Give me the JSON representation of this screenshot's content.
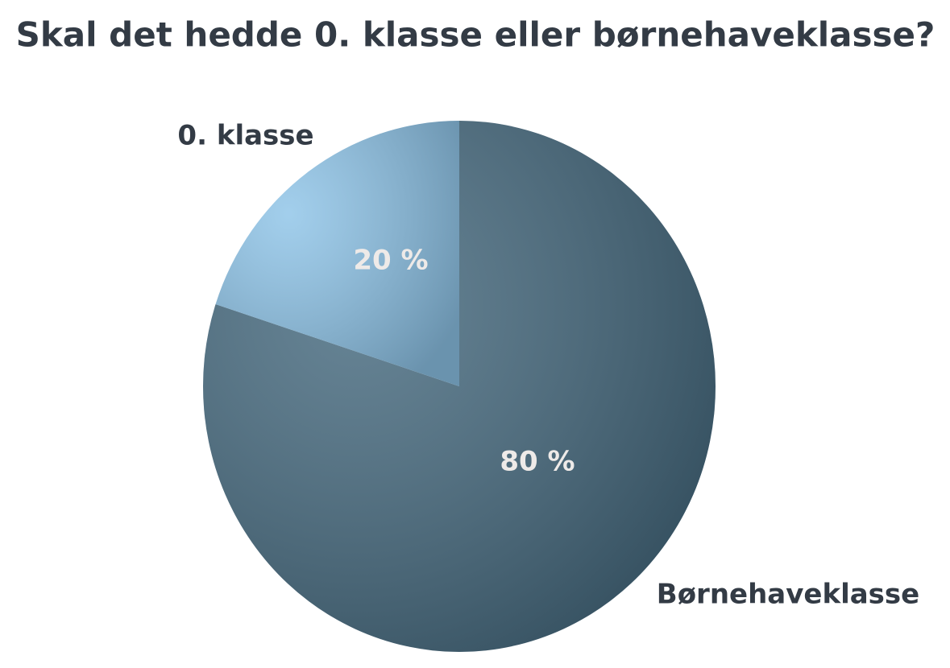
{
  "chart_data": {
    "type": "pie",
    "title": "Skal det hedde 0. klasse eller børnehaveklasse?",
    "categories": [
      "Børnehaveklasse",
      "0. klasse"
    ],
    "values": [
      80,
      20
    ],
    "value_labels": [
      "80 %",
      "20 %"
    ],
    "colors": [
      "#45697e",
      "#8ec4e8"
    ]
  }
}
